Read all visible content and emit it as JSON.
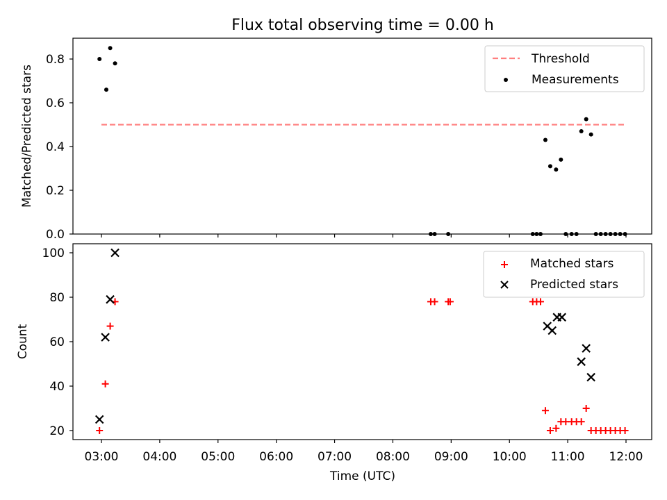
{
  "chart_data": [
    {
      "type": "scatter",
      "title": "Flux total observing time = 0.00 h",
      "xlabel": "",
      "ylabel": "Matched/Predicted stars",
      "ylim": [
        0,
        0.9
      ],
      "yticks": [
        "0.0",
        "0.2",
        "0.4",
        "0.6",
        "0.8"
      ],
      "legend_position": "top-right",
      "threshold": {
        "name": "Threshold",
        "y": 0.5,
        "x_start": "03:00",
        "x_end": "12:00",
        "color": "#ff7f7f",
        "style": "dashed"
      },
      "series": [
        {
          "name": "Measurements",
          "color": "#000000",
          "marker": "dot",
          "x": [
            "02:58",
            "03:05",
            "03:09",
            "03:14",
            "08:39",
            "08:43",
            "08:57",
            "10:24",
            "10:28",
            "10:32",
            "10:37",
            "10:42",
            "10:48",
            "10:53",
            "10:58",
            "11:04",
            "11:09",
            "11:14",
            "11:19",
            "11:24",
            "11:29",
            "11:34",
            "11:39",
            "11:44",
            "11:49",
            "11:54",
            "11:59"
          ],
          "y": [
            0.8,
            0.66,
            0.85,
            0.78,
            0,
            0,
            0,
            0,
            0,
            0,
            0.43,
            0.31,
            0.295,
            0.34,
            0,
            0,
            0,
            0.47,
            0.525,
            0.455,
            0,
            0,
            0,
            0,
            0,
            0,
            0
          ]
        }
      ]
    },
    {
      "type": "scatter",
      "title": "",
      "xlabel": "Time (UTC)",
      "ylabel": "Count",
      "ylim": [
        16,
        103
      ],
      "yticks": [
        "20",
        "40",
        "60",
        "80",
        "100"
      ],
      "xticks": [
        "03:00",
        "04:00",
        "05:00",
        "06:00",
        "07:00",
        "08:00",
        "09:00",
        "10:00",
        "11:00",
        "12:00"
      ],
      "legend_position": "top-right",
      "series": [
        {
          "name": "Matched stars",
          "color": "#ff0000",
          "marker": "plus",
          "x": [
            "02:58",
            "03:04",
            "03:09",
            "03:14",
            "08:39",
            "08:43",
            "08:57",
            "08:59",
            "10:24",
            "10:28",
            "10:32",
            "10:37",
            "10:42",
            "10:48",
            "10:53",
            "10:58",
            "11:04",
            "11:09",
            "11:14",
            "11:19",
            "11:24",
            "11:29",
            "11:34",
            "11:39",
            "11:44",
            "11:49",
            "11:54",
            "11:59"
          ],
          "y": [
            20,
            41,
            67,
            78,
            78,
            78,
            78,
            78,
            78,
            78,
            78,
            29,
            20,
            21,
            24,
            24,
            24,
            24,
            24,
            30,
            20,
            20,
            20,
            20,
            20,
            20,
            20,
            20
          ]
        },
        {
          "name": "Predicted stars",
          "color": "#000000",
          "marker": "x",
          "x": [
            "02:58",
            "03:04",
            "03:09",
            "03:14",
            "10:39",
            "10:44",
            "10:49",
            "10:54",
            "11:14",
            "11:19",
            "11:24"
          ],
          "y": [
            25,
            62,
            79,
            100,
            67,
            65,
            71,
            71,
            51,
            57,
            44
          ]
        }
      ]
    }
  ]
}
